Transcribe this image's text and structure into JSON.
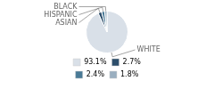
{
  "chart_data": {
    "type": "pie",
    "categories": [
      "WHITE",
      "ASIAN",
      "HISPANIC",
      "BLACK"
    ],
    "values": [
      93.1,
      2.7,
      2.4,
      1.8
    ],
    "value_labels": [
      "93.1%",
      "2.7%",
      "2.4%",
      "1.8%"
    ],
    "colors": [
      "#d9e0e8",
      "#2d4e6b",
      "#4a7a96",
      "#9aafc0"
    ],
    "legend": "bottom"
  }
}
